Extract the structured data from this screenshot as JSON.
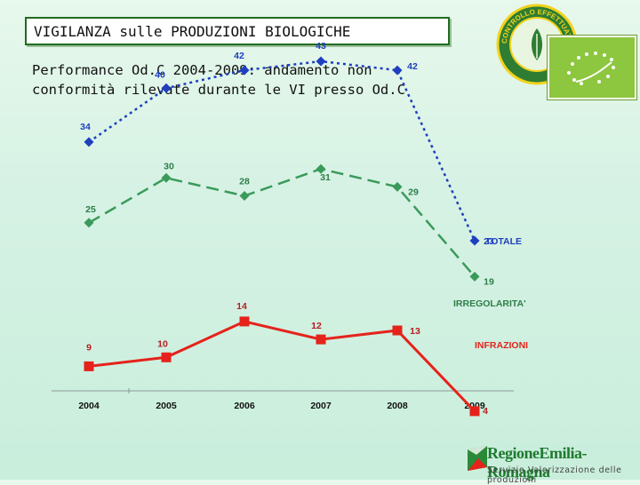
{
  "header": {
    "title": "VIGILANZA sulle PRODUZIONI BIOLOGICHE",
    "subtitle_line1": "Performance Od.C 2004-2009: andamento non",
    "subtitle_line2": "conformità rilevate durante le VI presso Od.C"
  },
  "logos": {
    "seal_text": "CONTROLLO EFFETTUATO",
    "seal_icon": "organic-seal-icon",
    "flag_icon": "eu-organic-leaf-icon",
    "region_name": "RegioneEmilia-Romagna",
    "region_subtitle": "Servizio Valorizzazione delle produzioni",
    "region_icon": "regione-emilia-romagna-icon"
  },
  "colors": {
    "totale": "#1f3fbf",
    "irregolarita": "#3a9a5a",
    "infrazioni": "#e5231b",
    "infrazioni_label": "#e5231b",
    "axis": "#8a9a9a"
  },
  "chart_data": {
    "type": "line",
    "x": [
      "2004",
      "2005",
      "2006",
      "2007",
      "2008",
      "2009"
    ],
    "ylim": [
      0,
      50
    ],
    "grid": false,
    "series": [
      {
        "name": "TOTALE",
        "values": [
          34,
          40,
          42,
          43,
          42,
          23
        ],
        "marker": "diamond",
        "style": "dotted"
      },
      {
        "name": "IRREGOLARITA'",
        "values": [
          25,
          30,
          28,
          31,
          29,
          19
        ],
        "marker": "diamond",
        "style": "dashed"
      },
      {
        "name": "INFRAZIONI",
        "values": [
          9,
          10,
          14,
          12,
          13,
          4
        ],
        "marker": "square",
        "style": "solid"
      }
    ]
  }
}
